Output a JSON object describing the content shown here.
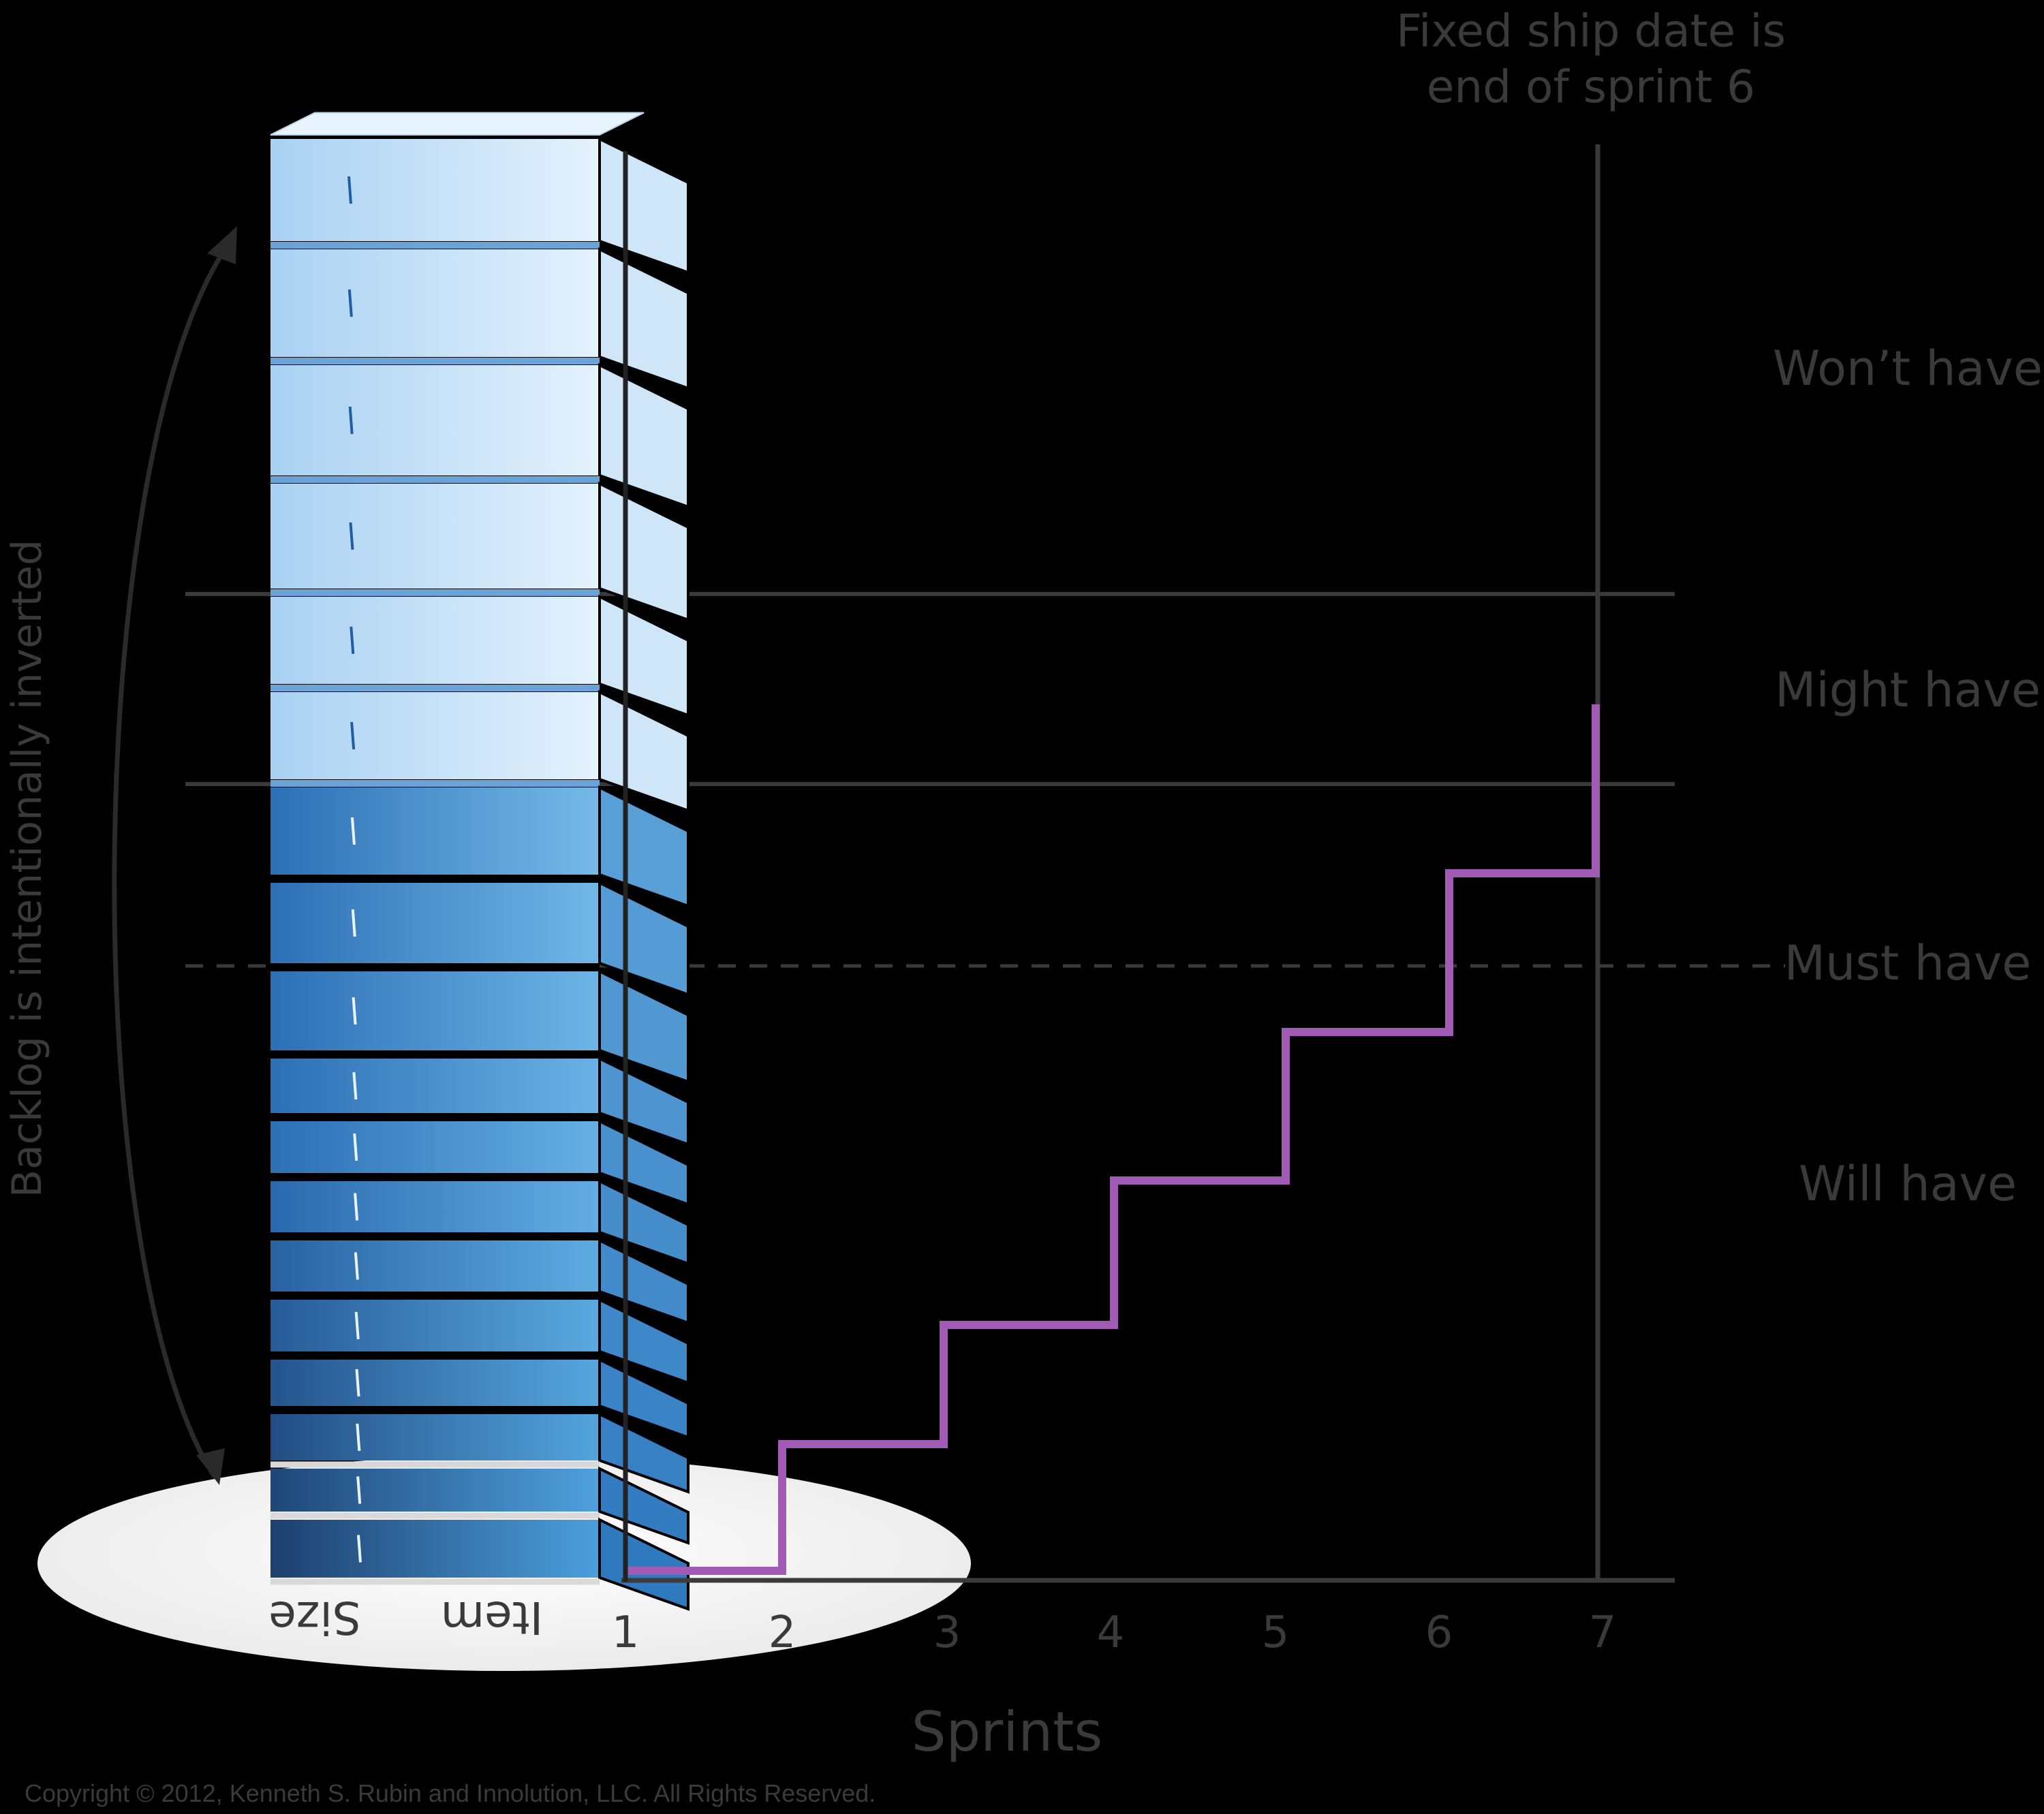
{
  "annotation": {
    "ship_date_line1": "Fixed ship date is",
    "ship_date_line2": "end of sprint 6"
  },
  "zones": {
    "wont_have": "Won’t have",
    "might_have": "Might have",
    "must_have": "Must have",
    "will_have": "Will have"
  },
  "backlog": {
    "inverted_note": "Backlog is intentionally inverted",
    "size_label": "Size",
    "item_label": "Item",
    "item_count": 18
  },
  "axis": {
    "title": "Sprints",
    "ticks": [
      "1",
      "2",
      "3",
      "4",
      "5",
      "6",
      "7"
    ]
  },
  "burnup": {
    "color": "#a15bb4",
    "steps": [
      0,
      1,
      2,
      3,
      4,
      5,
      6,
      7
    ]
  },
  "colors": {
    "background": "#000000",
    "line": "#3a3a3a",
    "text": "#3a3a3a",
    "disc": "#f5f5f5",
    "block_light": "#d6ebfa",
    "block_dark": "#1d4f8a"
  },
  "copyright": "Copyright © 2012, Kenneth S. Rubin and Innolution, LLC. All Rights Reserved."
}
